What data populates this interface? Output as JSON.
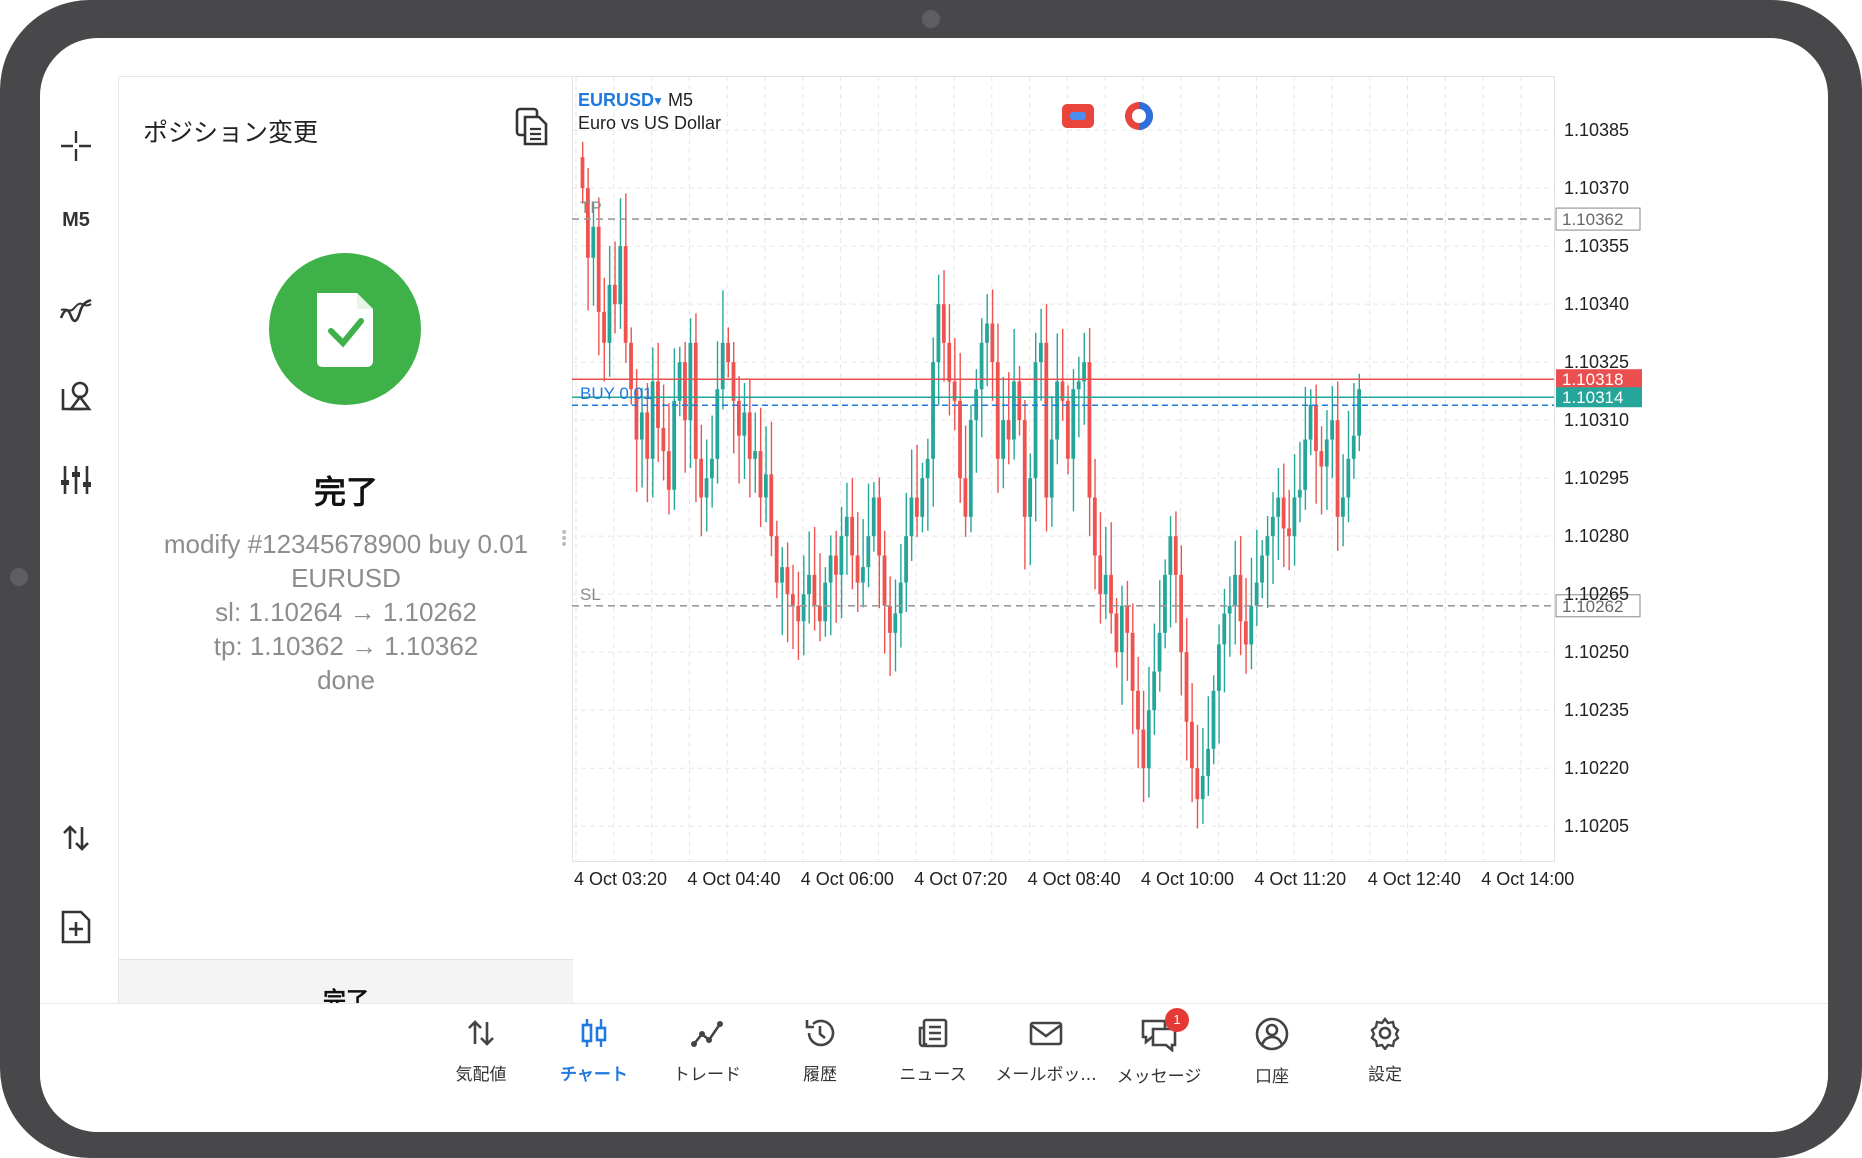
{
  "sidebar": {
    "timeframe_label": "M5"
  },
  "panel": {
    "title": "ポジション変更",
    "status_title": "完了",
    "log_lines": [
      "modify #12345678900 buy 0.01",
      "EURUSD",
      "sl: 1.10264 → 1.10262",
      "tp: 1.10362 → 1.10362",
      "done"
    ],
    "footer_button": "完了"
  },
  "chart": {
    "symbol": "EURUSD",
    "timeframe": "M5",
    "description": "Euro vs US Dollar",
    "tp_label": "TP",
    "sl_label": "SL",
    "buy_label": "BUY 0.01",
    "price_labels": [
      "1.10385",
      "1.10370",
      "1.10355",
      "1.10340",
      "1.10325",
      "1.10310",
      "1.10295",
      "1.10280",
      "1.10265",
      "1.10250",
      "1.10235",
      "1.10220",
      "1.10205"
    ],
    "tp_price": "1.10362",
    "sl_price": "1.10262",
    "bid_price": "1.10318",
    "ask_price": "1.10314",
    "time_labels": [
      "4 Oct 03:20",
      "4 Oct 04:40",
      "4 Oct 06:00",
      "4 Oct 07:20",
      "4 Oct 08:40",
      "4 Oct 10:00",
      "4 Oct 11:20",
      "4 Oct 12:40",
      "4 Oct 14:00"
    ],
    "colors": {
      "up": "#26a69a",
      "down": "#ef5350",
      "grid": "#e6e6e6",
      "symbol": "#1f7ae0",
      "bid": "#e94f4f",
      "ask": "#26a69a",
      "buy_line": "#1f7ae0"
    }
  },
  "chart_data": {
    "type": "candlestick",
    "symbol": "EURUSD",
    "ylim": [
      1.10196,
      1.10399
    ],
    "closes": [
      1.1037,
      1.10352,
      1.1036,
      1.10338,
      1.1033,
      1.10345,
      1.1034,
      1.10355,
      1.1033,
      1.10318,
      1.10305,
      1.10312,
      1.103,
      1.1032,
      1.10308,
      1.10302,
      1.10292,
      1.10315,
      1.10325,
      1.1031,
      1.1033,
      1.103,
      1.1029,
      1.10295,
      1.103,
      1.10318,
      1.1033,
      1.10325,
      1.10315,
      1.10306,
      1.10312,
      1.103,
      1.10302,
      1.1029,
      1.10296,
      1.1028,
      1.10268,
      1.10272,
      1.10265,
      1.10262,
      1.10258,
      1.10265,
      1.1027,
      1.10262,
      1.10258,
      1.10268,
      1.10275,
      1.1027,
      1.1028,
      1.10285,
      1.10275,
      1.10268,
      1.10272,
      1.1028,
      1.1029,
      1.10275,
      1.10262,
      1.10255,
      1.1026,
      1.10268,
      1.1028,
      1.1029,
      1.10285,
      1.10295,
      1.103,
      1.10325,
      1.1034,
      1.1033,
      1.1032,
      1.10315,
      1.10295,
      1.10285,
      1.1031,
      1.10318,
      1.1033,
      1.10335,
      1.10325,
      1.103,
      1.1031,
      1.10305,
      1.1032,
      1.1031,
      1.10285,
      1.10295,
      1.10325,
      1.1033,
      1.1029,
      1.10305,
      1.1032,
      1.10315,
      1.103,
      1.10318,
      1.1032,
      1.10325,
      1.1029,
      1.10275,
      1.10265,
      1.1027,
      1.1026,
      1.1025,
      1.10262,
      1.10255,
      1.1024,
      1.1023,
      1.1022,
      1.10235,
      1.10245,
      1.10255,
      1.1027,
      1.1028,
      1.1027,
      1.1025,
      1.10232,
      1.1022,
      1.10212,
      1.10218,
      1.10225,
      1.1024,
      1.10252,
      1.1026,
      1.10262,
      1.1027,
      1.10258,
      1.10252,
      1.10262,
      1.10268,
      1.10275,
      1.1028,
      1.10285,
      1.1029,
      1.10282,
      1.1028,
      1.1029,
      1.10292,
      1.10305,
      1.10314,
      1.10302,
      1.10298,
      1.10305,
      1.1031,
      1.10285,
      1.1029,
      1.103,
      1.10306,
      1.10318
    ],
    "time_labels": [
      "4 Oct 03:20",
      "4 Oct 04:40",
      "4 Oct 06:00",
      "4 Oct 07:20",
      "4 Oct 08:40",
      "4 Oct 10:00",
      "4 Oct 11:20",
      "4 Oct 12:40",
      "4 Oct 14:00"
    ]
  },
  "chart_overlays": {
    "indicator_icons": [
      "rectangle-tool-icon",
      "circle-tool-icon"
    ]
  },
  "bottom_nav": {
    "items": [
      {
        "label": "気配値",
        "icon": "quotes-icon",
        "active": false
      },
      {
        "label": "チャート",
        "icon": "chart-candles-icon",
        "active": true
      },
      {
        "label": "トレード",
        "icon": "trade-icon",
        "active": false
      },
      {
        "label": "履歴",
        "icon": "history-icon",
        "active": false
      },
      {
        "label": "ニュース",
        "icon": "news-icon",
        "active": false
      },
      {
        "label": "メールボッ...",
        "icon": "mail-icon",
        "active": false
      },
      {
        "label": "メッセージ",
        "icon": "messages-icon",
        "active": false,
        "badge": "1"
      },
      {
        "label": "口座",
        "icon": "account-icon",
        "active": false
      },
      {
        "label": "設定",
        "icon": "settings-icon",
        "active": false
      }
    ]
  }
}
